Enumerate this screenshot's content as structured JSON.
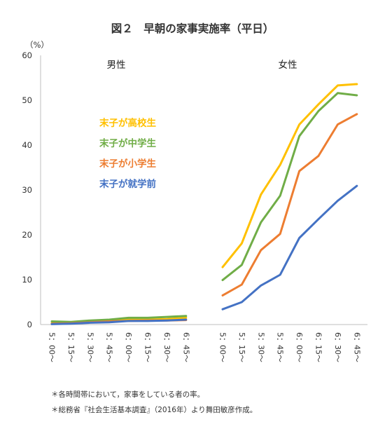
{
  "chart_data": {
    "type": "line",
    "title": "図２　早朝の家事実施率（平日）",
    "yunit": "（%）",
    "ylim": [
      0,
      60
    ],
    "yticks": [
      "0",
      "10",
      "20",
      "30",
      "40",
      "50",
      "60"
    ],
    "grid": false,
    "categories": [
      "5：00～",
      "5：15～",
      "5：30～",
      "5：45～",
      "6：00～",
      "6：15～",
      "6：30～",
      "6：45～"
    ],
    "panels": [
      {
        "label": "男性",
        "series": [
          {
            "name": "末子が高校生",
            "color": "#FFC000",
            "values": [
              0.3,
              0.4,
              0.7,
              0.9,
              1.1,
              1.1,
              1.2,
              1.5
            ]
          },
          {
            "name": "末子が中学生",
            "color": "#70AD47",
            "values": [
              0.7,
              0.6,
              0.9,
              1.1,
              1.5,
              1.5,
              1.7,
              1.9
            ]
          },
          {
            "name": "末子が小学生",
            "color": "#ED7D31",
            "values": [
              0.2,
              0.3,
              0.5,
              0.7,
              0.8,
              0.9,
              0.9,
              1.0
            ]
          },
          {
            "name": "末子が就学前",
            "color": "#4472C4",
            "values": [
              0.1,
              0.2,
              0.4,
              0.5,
              0.8,
              0.8,
              0.9,
              1.1
            ]
          }
        ]
      },
      {
        "label": "女性",
        "series": [
          {
            "name": "末子が高校生",
            "color": "#FFC000",
            "values": [
              12.8,
              18.1,
              29.0,
              35.6,
              44.6,
              49.1,
              53.3,
              53.6
            ]
          },
          {
            "name": "末子が中学生",
            "color": "#70AD47",
            "values": [
              9.9,
              13.3,
              22.8,
              28.7,
              42.0,
              47.6,
              51.6,
              51.1
            ]
          },
          {
            "name": "末子が小学生",
            "color": "#ED7D31",
            "values": [
              6.5,
              8.9,
              16.6,
              20.2,
              34.2,
              37.6,
              44.6,
              46.9
            ]
          },
          {
            "name": "末子が就学前",
            "color": "#4472C4",
            "values": [
              3.4,
              5.0,
              8.7,
              11.1,
              19.3,
              23.5,
              27.6,
              30.9
            ]
          }
        ]
      }
    ],
    "legend": [
      {
        "label": "末子が高校生",
        "color": "#FFC000"
      },
      {
        "label": "末子が中学生",
        "color": "#70AD47"
      },
      {
        "label": "末子が小学生",
        "color": "#ED7D31"
      },
      {
        "label": "末子が就学前",
        "color": "#4472C4"
      }
    ]
  },
  "notes": [
    "＊各時間帯において，家事をしている者の率。",
    "＊総務省『社会生活基本調査』（2016年）より舞田敏彦作成。"
  ]
}
